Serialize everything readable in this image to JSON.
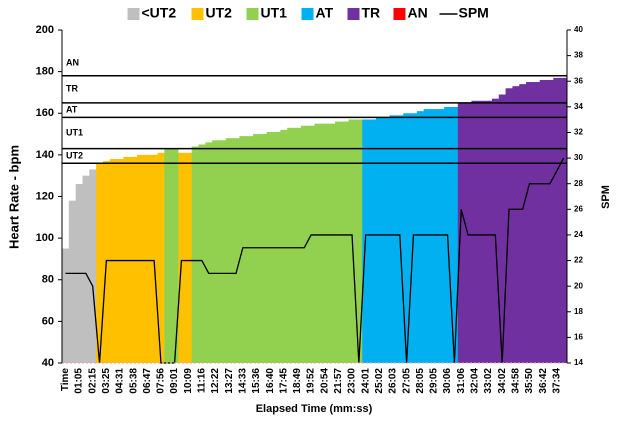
{
  "chart_data": {
    "type": "bar",
    "x_label": "Elapsed Time (mm:ss)",
    "y_label": "Heart Rate - bpm",
    "y2_label": "SPM",
    "categories": [
      "Time",
      null,
      "01:05",
      null,
      "02:15",
      null,
      "03:25",
      null,
      "04:31",
      null,
      "05:38",
      null,
      "06:47",
      null,
      "07:56",
      null,
      "09:01",
      null,
      "10:09",
      null,
      "11:16",
      null,
      "12:22",
      null,
      "13:27",
      null,
      "14:33",
      null,
      "15:36",
      null,
      "16:40",
      null,
      "17:45",
      null,
      "18:49",
      null,
      "19:52",
      null,
      "20:54",
      null,
      "21:57",
      null,
      "23:00",
      null,
      "24:01",
      null,
      "25:02",
      null,
      "26:03",
      null,
      "27:05",
      null,
      "28:05",
      null,
      "29:05",
      null,
      "30:06",
      null,
      "31:06",
      null,
      "32:04",
      null,
      "33:02",
      null,
      "34:02",
      null,
      "34:58",
      null,
      "35:50",
      null,
      "36:42",
      null,
      "37:34",
      null
    ],
    "series": [
      {
        "name": "<UT2",
        "color": "#bfbfbf",
        "values": [
          95,
          118,
          126,
          130,
          133,
          null,
          null,
          null,
          null,
          null,
          null,
          null,
          null,
          null,
          null,
          null,
          null,
          null,
          null,
          null,
          null,
          null,
          null,
          null,
          null,
          null,
          null,
          null,
          null,
          null,
          null,
          null,
          null,
          null,
          null,
          null,
          null,
          null,
          null,
          null,
          null,
          null,
          null,
          null,
          null,
          null,
          null,
          null,
          null,
          null,
          null,
          null,
          null,
          null,
          null,
          null,
          null,
          null,
          null,
          null,
          null,
          null,
          null,
          null,
          null,
          null,
          null,
          null,
          null,
          null,
          null,
          null,
          null,
          null
        ]
      },
      {
        "name": "UT2",
        "color": "#ffc000",
        "values": [
          null,
          null,
          null,
          null,
          null,
          136,
          137,
          138,
          138,
          139,
          139,
          140,
          140,
          140,
          141,
          null,
          null,
          141,
          141,
          null,
          null,
          null,
          null,
          null,
          null,
          null,
          null,
          null,
          null,
          null,
          null,
          null,
          null,
          null,
          null,
          null,
          null,
          null,
          null,
          null,
          null,
          null,
          null,
          null,
          null,
          null,
          null,
          null,
          null,
          null,
          null,
          null,
          null,
          null,
          null,
          null,
          null,
          null,
          null,
          null,
          null,
          null,
          null,
          null,
          null,
          null,
          null,
          null,
          null,
          null,
          null,
          null,
          null,
          null
        ]
      },
      {
        "name": "UT1",
        "color": "#92d050",
        "values": [
          null,
          null,
          null,
          null,
          null,
          null,
          null,
          null,
          null,
          null,
          null,
          null,
          null,
          null,
          null,
          143,
          143,
          null,
          null,
          144,
          145,
          146,
          147,
          147,
          148,
          148,
          149,
          149,
          150,
          150,
          151,
          151,
          152,
          153,
          153,
          154,
          154,
          155,
          155,
          155,
          156,
          156,
          157,
          157,
          null,
          null,
          null,
          null,
          null,
          null,
          null,
          null,
          null,
          null,
          null,
          null,
          null,
          null,
          null,
          null,
          null,
          null,
          null,
          null,
          null,
          null,
          null,
          null,
          null,
          null,
          null,
          null,
          null,
          null
        ]
      },
      {
        "name": "AT",
        "color": "#00b0f0",
        "values": [
          null,
          null,
          null,
          null,
          null,
          null,
          null,
          null,
          null,
          null,
          null,
          null,
          null,
          null,
          null,
          null,
          null,
          null,
          null,
          null,
          null,
          null,
          null,
          null,
          null,
          null,
          null,
          null,
          null,
          null,
          null,
          null,
          null,
          null,
          null,
          null,
          null,
          null,
          null,
          null,
          null,
          null,
          null,
          null,
          157,
          157,
          158,
          158,
          159,
          159,
          160,
          160,
          161,
          162,
          162,
          162,
          163,
          163,
          null,
          null,
          null,
          null,
          null,
          null,
          null,
          null,
          null,
          null,
          null,
          null,
          null,
          null,
          null,
          null
        ]
      },
      {
        "name": "TR",
        "color": "#7030a0",
        "values": [
          null,
          null,
          null,
          null,
          null,
          null,
          null,
          null,
          null,
          null,
          null,
          null,
          null,
          null,
          null,
          null,
          null,
          null,
          null,
          null,
          null,
          null,
          null,
          null,
          null,
          null,
          null,
          null,
          null,
          null,
          null,
          null,
          null,
          null,
          null,
          null,
          null,
          null,
          null,
          null,
          null,
          null,
          null,
          null,
          null,
          null,
          null,
          null,
          null,
          null,
          null,
          null,
          null,
          null,
          null,
          null,
          null,
          null,
          165,
          165,
          166,
          166,
          166,
          167,
          169,
          172,
          173,
          174,
          175,
          175,
          176,
          176,
          177,
          177
        ]
      },
      {
        "name": "AN",
        "color": "#ff0000",
        "values": [
          null,
          null,
          null,
          null,
          null,
          null,
          null,
          null,
          null,
          null,
          null,
          null,
          null,
          null,
          null,
          null,
          null,
          null,
          null,
          null,
          null,
          null,
          null,
          null,
          null,
          null,
          null,
          null,
          null,
          null,
          null,
          null,
          null,
          null,
          null,
          null,
          null,
          null,
          null,
          null,
          null,
          null,
          null,
          null,
          null,
          null,
          null,
          null,
          null,
          null,
          null,
          null,
          null,
          null,
          null,
          null,
          null,
          null,
          null,
          null,
          null,
          null,
          null,
          null,
          null,
          null,
          null,
          null,
          null,
          null,
          null,
          null,
          null,
          null
        ]
      },
      {
        "name": "SPM",
        "color": "#000000",
        "type": "line",
        "axis": "y2",
        "values": [
          21,
          21,
          21,
          21,
          20,
          14,
          22,
          22,
          22,
          22,
          22,
          22,
          22,
          22,
          14,
          14,
          14,
          22,
          22,
          22,
          22,
          21,
          21,
          21,
          21,
          21,
          23,
          23,
          23,
          23,
          23,
          23,
          23,
          23,
          23,
          23,
          24,
          24,
          24,
          24,
          24,
          24,
          24,
          14,
          24,
          24,
          24,
          24,
          24,
          24,
          14,
          24,
          24,
          24,
          24,
          24,
          24,
          14,
          26,
          24,
          24,
          24,
          24,
          24,
          14,
          26,
          26,
          26,
          28,
          28,
          28,
          28,
          29,
          30
        ]
      }
    ],
    "zone_lines": [
      {
        "value": 178,
        "label": "AN"
      },
      {
        "value": 165,
        "label": "TR"
      },
      {
        "value": 158,
        "label": "AT"
      },
      {
        "value": 143,
        "label": "UT1"
      },
      {
        "value": 136,
        "label": "UT2"
      }
    ],
    "ylim": [
      40,
      200
    ],
    "yticks": [
      40,
      60,
      80,
      100,
      120,
      140,
      160,
      180,
      200
    ],
    "y2lim": [
      14,
      40
    ],
    "y2ticks": [
      14,
      16,
      18,
      20,
      22,
      24,
      26,
      28,
      30,
      32,
      34,
      36,
      38,
      40
    ],
    "legend": "top"
  }
}
